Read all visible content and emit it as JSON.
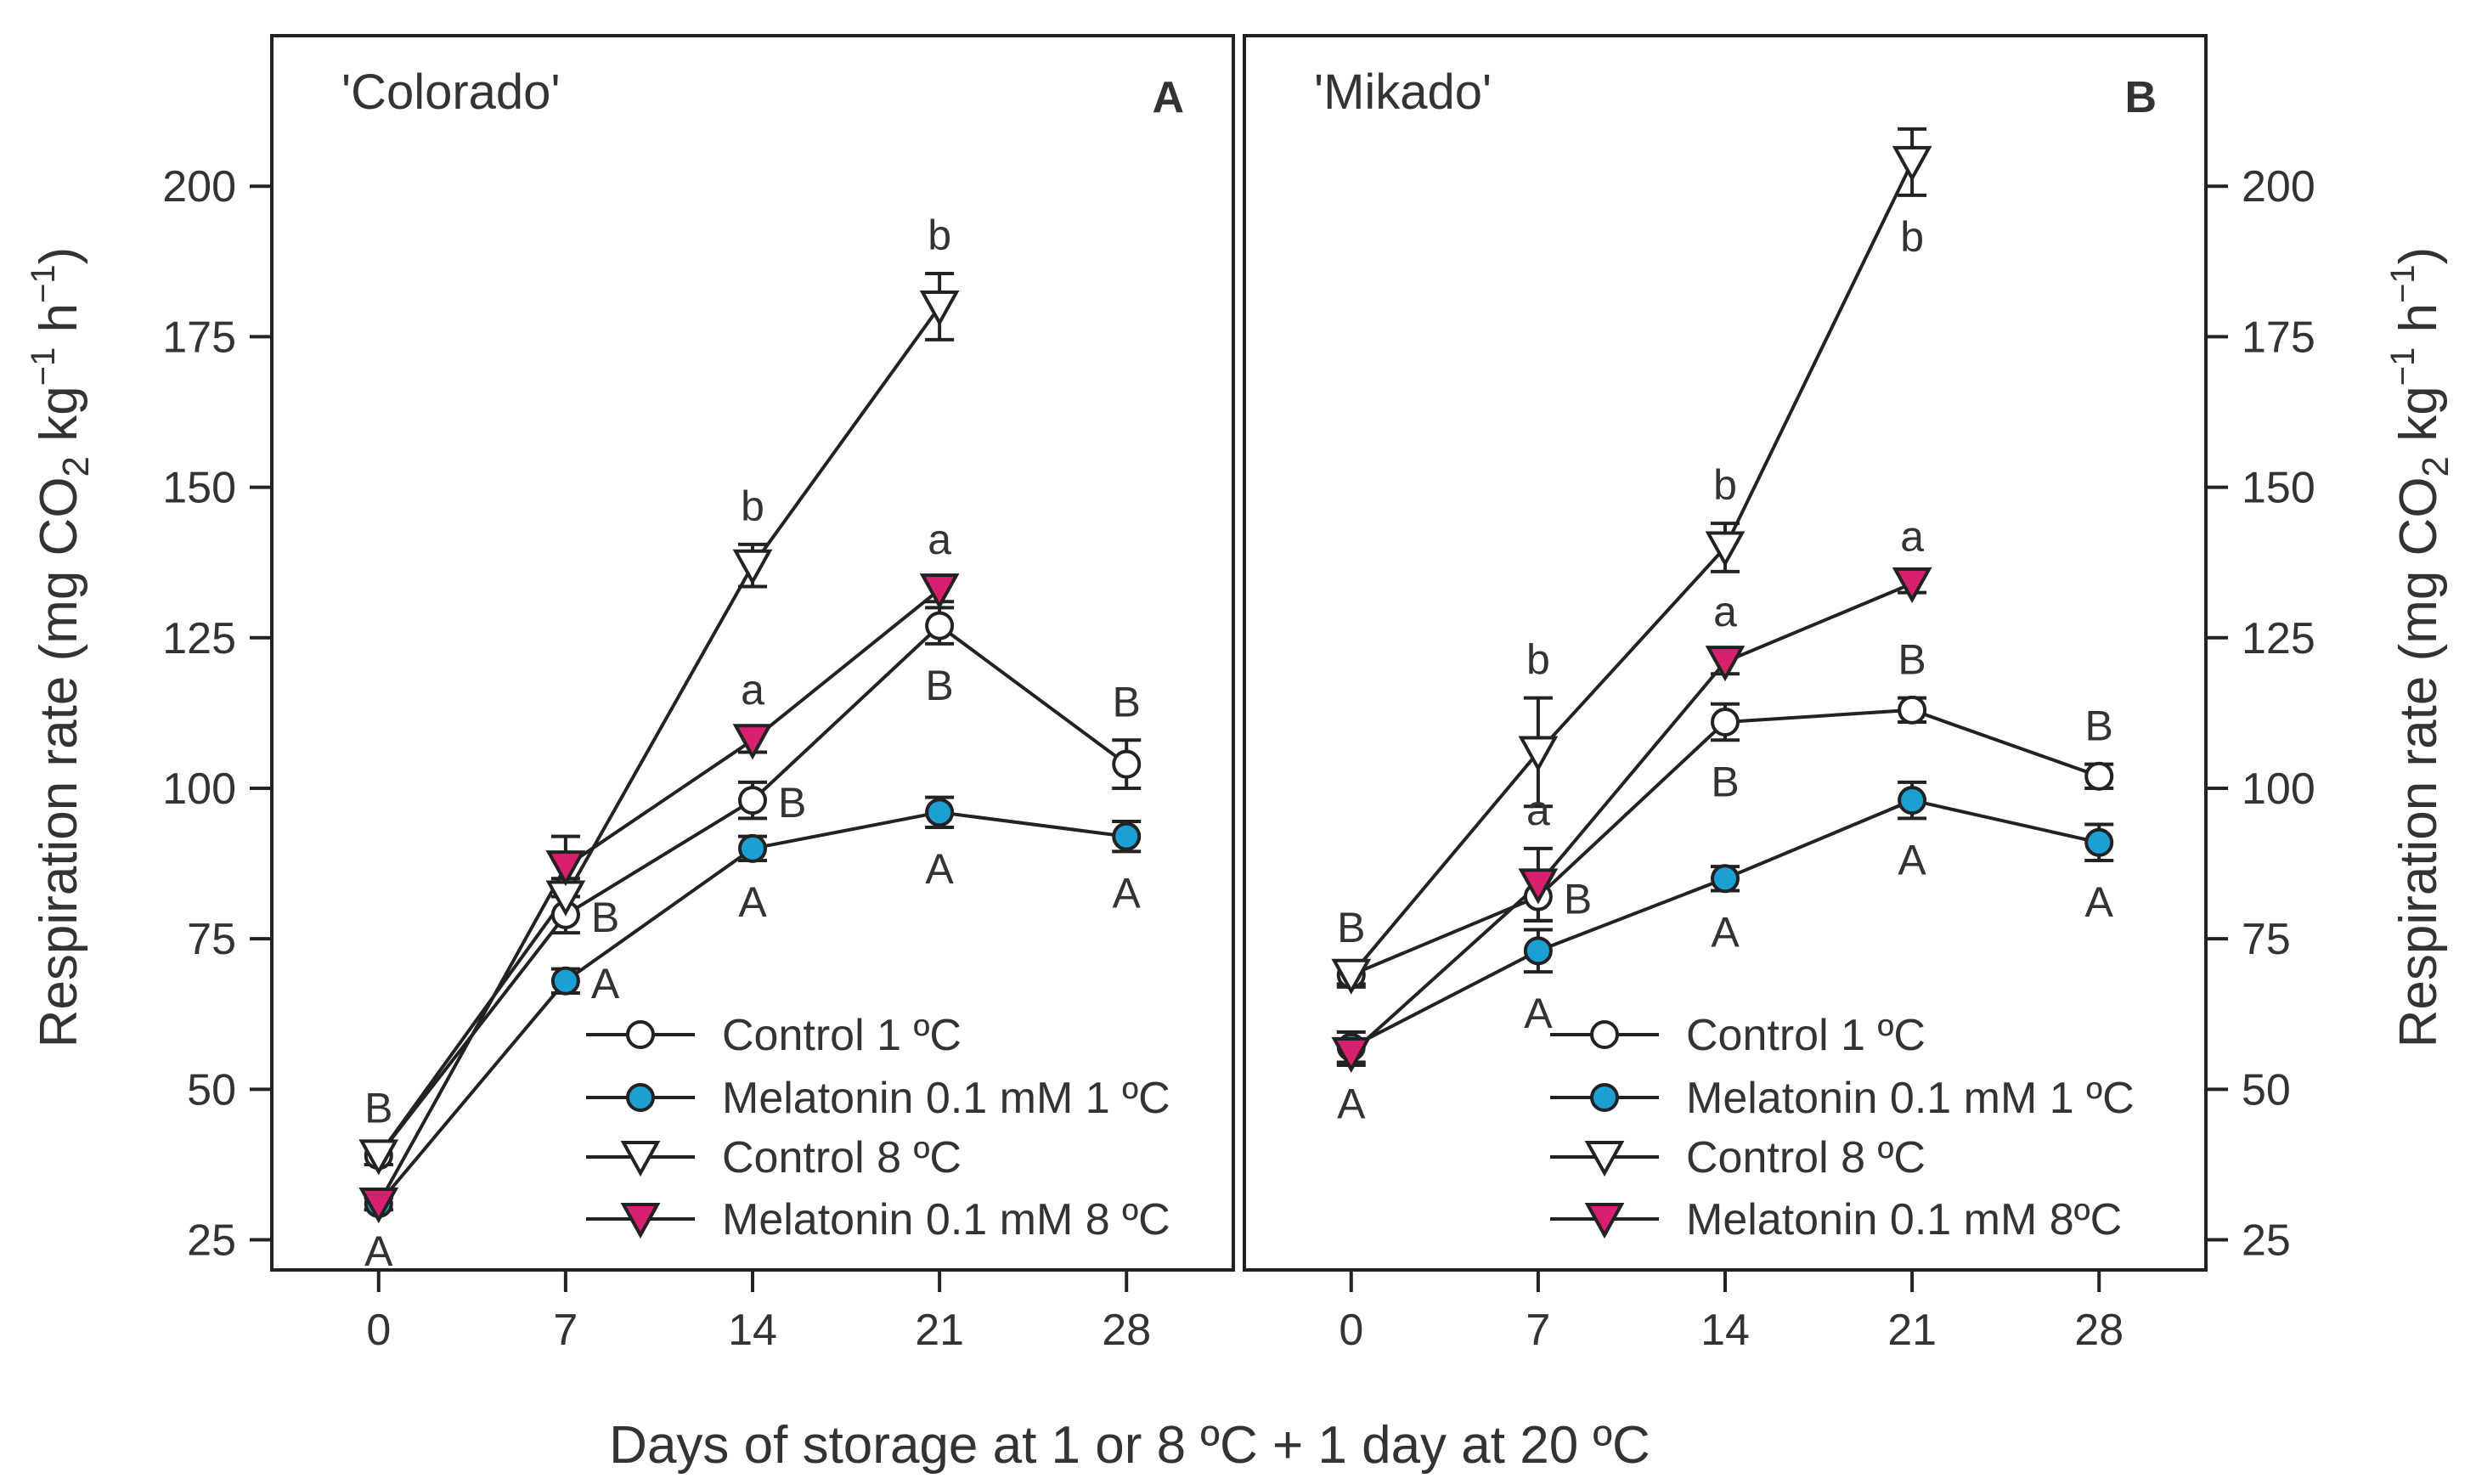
{
  "chart_data": [
    {
      "type": "line",
      "panel_title": "'Colorado'",
      "panel_letter": "A",
      "x": [
        0,
        7,
        14,
        21,
        28
      ],
      "xlim": [
        -4,
        32
      ],
      "ylim": [
        20,
        225
      ],
      "x_ticks": [
        "0",
        "7",
        "14",
        "21",
        "28"
      ],
      "y_ticks": [
        "25",
        "50",
        "75",
        "100",
        "125",
        "150",
        "175",
        "200"
      ],
      "ylabel": "Respiration rate (mg CO2 kg-1 h-1)",
      "series": [
        {
          "name": "Control 1 ºC",
          "marker": "circle",
          "fill": "#ffffff",
          "values": [
            39,
            79,
            98,
            127,
            104
          ],
          "err": [
            1.5,
            3,
            3,
            3,
            4
          ],
          "labels": [
            "B",
            "B",
            "B",
            "B",
            "B"
          ],
          "label_pos": [
            "above",
            "right",
            "right",
            "below",
            "above"
          ]
        },
        {
          "name": "Melatonin 0.1 mM 1 ºC",
          "marker": "circle",
          "fill": "#1c9fd3",
          "values": [
            31,
            68,
            90,
            96,
            92
          ],
          "err": [
            1,
            2,
            2,
            2.5,
            2.5
          ],
          "labels": [
            "A",
            "A",
            "A",
            "A",
            "A"
          ],
          "label_pos": [
            "below",
            "right",
            "below",
            "below",
            "below"
          ]
        },
        {
          "name": "Control 8 ºC",
          "marker": "triangle-down",
          "fill": "#ffffff",
          "values": [
            39,
            82,
            137,
            180,
            null
          ],
          "err": [
            1.5,
            3,
            3.5,
            5.5,
            null
          ],
          "labels": [
            "",
            "",
            "b",
            "b",
            ""
          ],
          "label_pos": [
            "",
            "",
            "above",
            "above",
            ""
          ]
        },
        {
          "name": "Melatonin 0.1 mM 8 ºC",
          "marker": "triangle-down",
          "fill": "#d61f6e",
          "values": [
            31,
            87,
            108,
            133,
            null
          ],
          "err": [
            1,
            5,
            2,
            2,
            null
          ],
          "labels": [
            "",
            "",
            "a",
            "a",
            ""
          ],
          "label_pos": [
            "",
            "",
            "above",
            "above",
            ""
          ]
        }
      ]
    },
    {
      "type": "line",
      "panel_title": "'Mikado'",
      "panel_letter": "B",
      "x": [
        0,
        7,
        14,
        21,
        28
      ],
      "xlim": [
        -4,
        32
      ],
      "ylim": [
        20,
        225
      ],
      "x_ticks": [
        "0",
        "7",
        "14",
        "21",
        "28"
      ],
      "y_ticks": [
        "25",
        "50",
        "75",
        "100",
        "125",
        "150",
        "175",
        "200"
      ],
      "ylabel": "Respiration rate (mg CO2 kg-1 h-1)",
      "series": [
        {
          "name": "Control 1 ºC",
          "marker": "circle",
          "fill": "#ffffff",
          "values": [
            69,
            82,
            111,
            113,
            102
          ],
          "err": [
            1.5,
            4,
            3,
            2,
            2
          ],
          "labels": [
            "B",
            "B",
            "B",
            "B",
            "B"
          ],
          "label_pos": [
            "above",
            "right",
            "below",
            "above",
            "above"
          ]
        },
        {
          "name": "Melatonin 0.1 mM 1 ºC",
          "marker": "circle",
          "fill": "#1c9fd3",
          "values": [
            57,
            73,
            85,
            98,
            91
          ],
          "err": [
            2.5,
            3.5,
            2,
            3,
            3
          ],
          "labels": [
            "A",
            "A",
            "A",
            "A",
            "A"
          ],
          "label_pos": [
            "below",
            "below",
            "below",
            "below",
            "below"
          ]
        },
        {
          "name": "Control 8 ºC",
          "marker": "triangle-down",
          "fill": "#ffffff",
          "values": [
            69,
            106,
            140,
            204,
            null
          ],
          "err": [
            2,
            9,
            4,
            5.5,
            null
          ],
          "labels": [
            "",
            "b",
            "b",
            "b",
            ""
          ],
          "label_pos": [
            "",
            "above",
            "above",
            "below",
            ""
          ]
        },
        {
          "name": "Melatonin 0.1 mM 8ºC",
          "marker": "triangle-down",
          "fill": "#d61f6e",
          "values": [
            56,
            84,
            121,
            134,
            null
          ],
          "err": [
            2,
            6,
            2,
            1.5,
            null
          ],
          "labels": [
            "",
            "a",
            "a",
            "a",
            ""
          ],
          "label_pos": [
            "",
            "above",
            "above",
            "above",
            ""
          ]
        }
      ]
    }
  ],
  "xlabel": "Days of storage at 1 or 8 ºC + 1 day at 20 ºC",
  "ylabel_parts": {
    "prefix": "Respiration rate (mg CO",
    "sub": "2",
    "kg": " kg",
    "sup1": "−1",
    "h": " h",
    "sup2": "−1",
    "suffix": ")"
  }
}
